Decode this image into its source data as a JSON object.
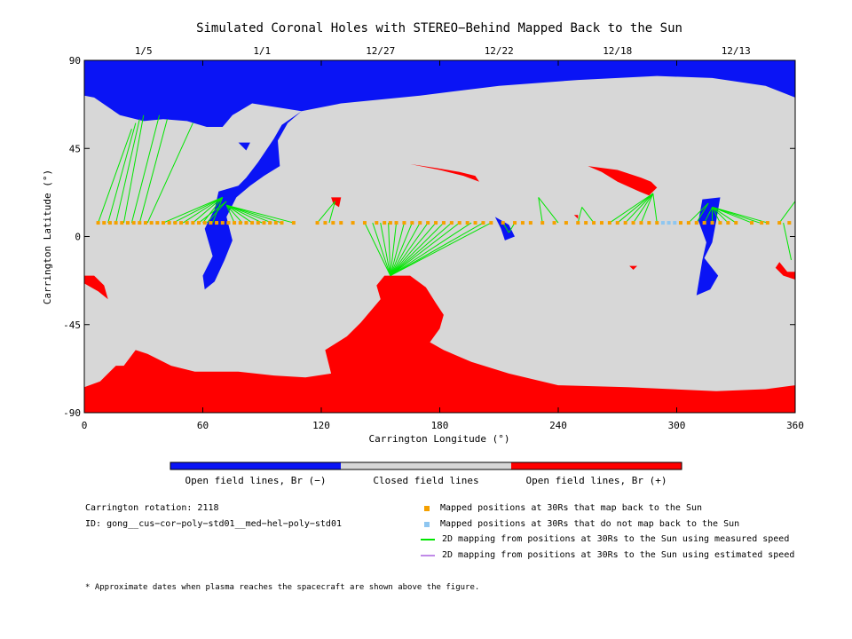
{
  "chart_data": {
    "type": "heatmap",
    "title": "Simulated Coronal Holes with STEREO−Behind Mapped Back to the Sun",
    "xlabel": "Carrington Longitude (°)",
    "ylabel": "Carrington Latitude (°)",
    "xlim": [
      0,
      360
    ],
    "ylim": [
      -90,
      90
    ],
    "x_ticks": [
      0,
      60,
      120,
      180,
      240,
      300,
      360
    ],
    "y_ticks": [
      -90,
      -45,
      0,
      45,
      90
    ],
    "top_axis": {
      "labels": [
        {
          "text": "1/5",
          "x": 30
        },
        {
          "text": "1/1",
          "x": 90
        },
        {
          "text": "12/27",
          "x": 150
        },
        {
          "text": "12/22",
          "x": 210
        },
        {
          "text": "12/18",
          "x": 270
        },
        {
          "text": "12/13",
          "x": 330
        }
      ]
    },
    "colors": {
      "open_negative": "#0a14f5",
      "closed": "#d7d7d7",
      "open_positive": "#ff0000",
      "mapped_back": "#f5a000",
      "not_mapped": "#8ec6f0",
      "measured_speed": "#00e600",
      "estimated_speed": "#c08ae8"
    },
    "regions": [
      {
        "polarity": "negative",
        "points": [
          [
            0,
            90
          ],
          [
            360,
            90
          ],
          [
            360,
            71
          ],
          [
            355,
            73
          ],
          [
            345,
            77
          ],
          [
            318,
            81
          ],
          [
            290,
            82
          ],
          [
            250,
            80
          ],
          [
            210,
            77
          ],
          [
            170,
            72
          ],
          [
            130,
            68
          ],
          [
            110,
            64
          ],
          [
            100,
            57
          ],
          [
            96,
            50
          ],
          [
            88,
            38
          ],
          [
            82,
            30
          ],
          [
            78,
            26
          ],
          [
            68,
            23
          ],
          [
            66,
            14
          ],
          [
            61,
            4
          ],
          [
            65,
            -10
          ],
          [
            60,
            -20
          ],
          [
            61,
            -27
          ],
          [
            66,
            -23
          ],
          [
            71,
            -12
          ],
          [
            75,
            -2
          ],
          [
            72,
            10
          ],
          [
            77,
            20
          ],
          [
            84,
            26
          ],
          [
            91,
            31
          ],
          [
            99,
            36
          ],
          [
            98,
            49
          ],
          [
            103,
            58
          ],
          [
            110,
            64
          ],
          [
            85,
            68
          ],
          [
            75,
            62
          ],
          [
            70,
            56
          ],
          [
            62,
            56
          ],
          [
            52,
            59
          ],
          [
            40,
            60
          ],
          [
            30,
            59
          ],
          [
            18,
            62
          ],
          [
            5,
            71
          ],
          [
            0,
            72
          ]
        ]
      },
      {
        "polarity": "negative",
        "points": [
          [
            313,
            19
          ],
          [
            322,
            20
          ],
          [
            320,
            8
          ],
          [
            318,
            -3
          ],
          [
            314,
            -11
          ],
          [
            321,
            -20
          ],
          [
            317,
            -27
          ],
          [
            310,
            -30
          ],
          [
            311,
            -24
          ],
          [
            313,
            -12
          ],
          [
            315,
            -3
          ],
          [
            311,
            8
          ]
        ]
      },
      {
        "polarity": "negative",
        "points": [
          [
            208,
            10
          ],
          [
            215,
            6
          ],
          [
            218,
            0
          ],
          [
            213,
            -2
          ],
          [
            211,
            4
          ]
        ]
      },
      {
        "polarity": "negative",
        "points": [
          [
            78,
            48
          ],
          [
            84,
            48
          ],
          [
            82,
            44
          ]
        ]
      },
      {
        "polarity": "positive",
        "points": [
          [
            0,
            -77
          ],
          [
            8,
            -74
          ],
          [
            16,
            -66
          ],
          [
            20,
            -66
          ],
          [
            26,
            -58
          ],
          [
            32,
            -60
          ],
          [
            44,
            -66
          ],
          [
            56,
            -69
          ],
          [
            78,
            -69
          ],
          [
            96,
            -71
          ],
          [
            112,
            -72
          ],
          [
            125,
            -70
          ],
          [
            122,
            -58
          ],
          [
            133,
            -51
          ],
          [
            140,
            -44
          ],
          [
            150,
            -32
          ],
          [
            148,
            -25
          ],
          [
            152,
            -20
          ],
          [
            165,
            -20
          ],
          [
            173,
            -26
          ],
          [
            178,
            -34
          ],
          [
            182,
            -40
          ],
          [
            180,
            -47
          ],
          [
            175,
            -54
          ],
          [
            182,
            -58
          ],
          [
            196,
            -64
          ],
          [
            215,
            -70
          ],
          [
            240,
            -76
          ],
          [
            275,
            -77
          ],
          [
            320,
            -79
          ],
          [
            345,
            -78
          ],
          [
            360,
            -76
          ],
          [
            360,
            -90
          ],
          [
            0,
            -90
          ]
        ]
      },
      {
        "polarity": "positive",
        "points": [
          [
            0,
            -20
          ],
          [
            5,
            -20
          ],
          [
            10,
            -25
          ],
          [
            12,
            -32
          ],
          [
            7,
            -28
          ],
          [
            0,
            -24
          ]
        ]
      },
      {
        "polarity": "positive",
        "points": [
          [
            352,
            -13
          ],
          [
            356,
            -18
          ],
          [
            360,
            -18
          ],
          [
            360,
            -22
          ],
          [
            354,
            -20
          ],
          [
            350,
            -16
          ]
        ]
      },
      {
        "polarity": "positive",
        "points": [
          [
            255,
            36
          ],
          [
            270,
            34
          ],
          [
            282,
            30
          ],
          [
            287,
            28
          ],
          [
            290,
            25
          ],
          [
            286,
            21
          ],
          [
            281,
            23
          ],
          [
            270,
            28
          ],
          [
            262,
            33
          ]
        ]
      },
      {
        "polarity": "positive",
        "points": [
          [
            165,
            37
          ],
          [
            178,
            35
          ],
          [
            190,
            33
          ],
          [
            198,
            31
          ],
          [
            200,
            28
          ],
          [
            192,
            31
          ],
          [
            180,
            34
          ],
          [
            170,
            36
          ]
        ]
      },
      {
        "polarity": "positive",
        "points": [
          [
            125,
            20
          ],
          [
            130,
            20
          ],
          [
            129,
            15
          ],
          [
            126,
            17
          ]
        ]
      },
      {
        "polarity": "positive",
        "points": [
          [
            248,
            11
          ],
          [
            250,
            11
          ],
          [
            250,
            9
          ]
        ]
      },
      {
        "polarity": "positive",
        "points": [
          [
            276,
            -15
          ],
          [
            280,
            -15
          ],
          [
            278,
            -17
          ]
        ]
      }
    ],
    "mapped_positions_30Rs": [
      7,
      10,
      13,
      16,
      19,
      22,
      25,
      28,
      31,
      34,
      37,
      40,
      43,
      46,
      49,
      52,
      55,
      58,
      61,
      64,
      67,
      70,
      73,
      76,
      79,
      82,
      85,
      88,
      91,
      94,
      97,
      100,
      106,
      118,
      122,
      126,
      130,
      136,
      142,
      148,
      152,
      155,
      158,
      162,
      166,
      170,
      174,
      178,
      182,
      186,
      190,
      194,
      198,
      202,
      206,
      212,
      218,
      222,
      226,
      232,
      238,
      244,
      250,
      254,
      258,
      262,
      266,
      270,
      274,
      278,
      282,
      286,
      290,
      302,
      306,
      310,
      314,
      318,
      322,
      326,
      330,
      338,
      343,
      346,
      352,
      357
    ],
    "not_mapped_positions_30Rs": [
      293,
      296,
      299
    ],
    "mapping_lines_measured": [
      [
        0,
        7,
        0,
        18
      ],
      [
        7,
        7,
        24,
        55
      ],
      [
        12,
        7,
        26,
        58
      ],
      [
        16,
        7,
        28,
        60
      ],
      [
        20,
        7,
        30,
        62
      ],
      [
        24,
        7,
        38,
        62
      ],
      [
        28,
        7,
        42,
        60
      ],
      [
        32,
        7,
        55,
        58
      ],
      [
        40,
        7,
        70,
        20
      ],
      [
        45,
        7,
        70,
        20
      ],
      [
        50,
        7,
        70,
        20
      ],
      [
        55,
        7,
        70,
        20
      ],
      [
        60,
        7,
        70,
        20
      ],
      [
        65,
        7,
        70,
        20
      ],
      [
        58,
        7,
        72,
        18
      ],
      [
        62,
        7,
        72,
        18
      ],
      [
        76,
        7,
        72,
        16
      ],
      [
        80,
        7,
        72,
        16
      ],
      [
        85,
        7,
        72,
        16
      ],
      [
        90,
        7,
        72,
        16
      ],
      [
        95,
        7,
        72,
        16
      ],
      [
        100,
        7,
        72,
        16
      ],
      [
        106,
        7,
        72,
        16
      ],
      [
        118,
        7,
        127,
        18
      ],
      [
        124,
        7,
        127,
        18
      ],
      [
        142,
        7,
        155,
        -20
      ],
      [
        146,
        7,
        155,
        -20
      ],
      [
        150,
        7,
        155,
        -20
      ],
      [
        154,
        7,
        155,
        -20
      ],
      [
        158,
        7,
        155,
        -20
      ],
      [
        162,
        7,
        155,
        -20
      ],
      [
        166,
        7,
        155,
        -20
      ],
      [
        170,
        7,
        155,
        -20
      ],
      [
        174,
        7,
        155,
        -20
      ],
      [
        178,
        7,
        155,
        -20
      ],
      [
        182,
        7,
        155,
        -20
      ],
      [
        186,
        7,
        155,
        -20
      ],
      [
        190,
        7,
        155,
        -20
      ],
      [
        196,
        7,
        155,
        -20
      ],
      [
        202,
        7,
        155,
        -20
      ],
      [
        206,
        7,
        155,
        -20
      ],
      [
        212,
        7,
        215,
        2
      ],
      [
        218,
        7,
        215,
        2
      ],
      [
        232,
        7,
        230,
        20
      ],
      [
        240,
        7,
        230,
        20
      ],
      [
        250,
        7,
        252,
        15
      ],
      [
        258,
        7,
        252,
        15
      ],
      [
        266,
        7,
        288,
        22
      ],
      [
        270,
        7,
        288,
        22
      ],
      [
        274,
        7,
        288,
        22
      ],
      [
        278,
        7,
        288,
        22
      ],
      [
        282,
        7,
        288,
        22
      ],
      [
        290,
        7,
        288,
        22
      ],
      [
        306,
        7,
        316,
        17
      ],
      [
        310,
        7,
        316,
        17
      ],
      [
        314,
        7,
        318,
        15
      ],
      [
        318,
        7,
        318,
        15
      ],
      [
        322,
        7,
        318,
        15
      ],
      [
        326,
        7,
        318,
        15
      ],
      [
        330,
        7,
        318,
        15
      ],
      [
        338,
        7,
        318,
        15
      ],
      [
        342,
        7,
        318,
        15
      ],
      [
        346,
        7,
        318,
        15
      ],
      [
        352,
        7,
        360,
        18
      ],
      [
        354,
        7,
        358,
        -12
      ]
    ],
    "mapping_lines_estimated": []
  },
  "colorbar": {
    "label_negative": "Open field lines, Br (−)",
    "label_closed": "Closed field lines",
    "label_positive": "Open field lines, Br (+)"
  },
  "info": {
    "rotation": "Carrington rotation: 2118",
    "model_id": "ID: gong__cus−cor−poly−std01__med−hel−poly−std01",
    "footnote": "* Approximate dates when plasma reaches the spacecraft are shown above the figure."
  },
  "legend": {
    "mapped": "Mapped positions at 30Rs that map back to the Sun",
    "not_mapped": "Mapped positions at 30Rs that do not map back to the Sun",
    "measured": "2D mapping from positions at 30Rs to the Sun using measured speed",
    "estimated": "2D mapping from positions at 30Rs to the Sun using estimated speed"
  }
}
